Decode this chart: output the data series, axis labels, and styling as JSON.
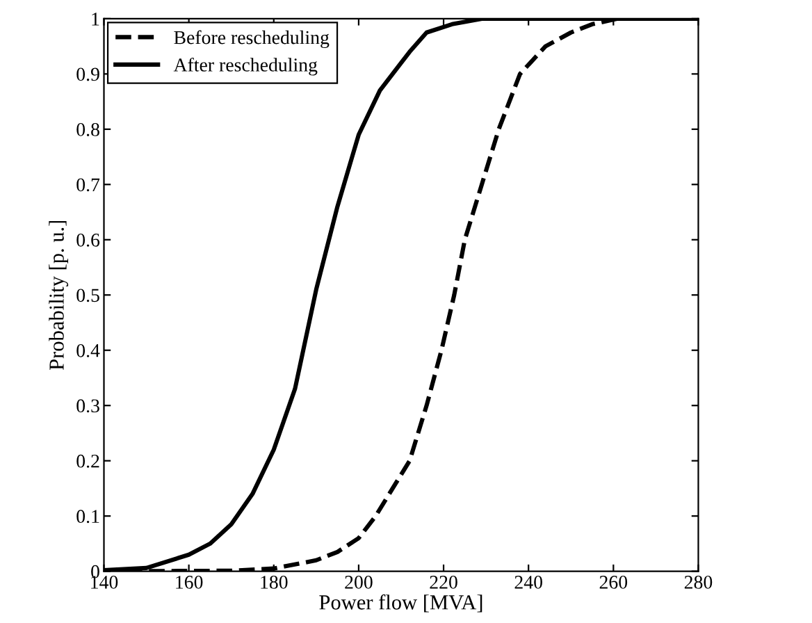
{
  "chart_data": {
    "type": "line",
    "xlabel": "Power flow [MVA]",
    "ylabel": "Probability [p. u.]",
    "xlim": [
      140,
      280
    ],
    "ylim": [
      0,
      1
    ],
    "xticks": [
      140,
      160,
      180,
      200,
      220,
      240,
      260,
      280
    ],
    "yticks": [
      0,
      0.1,
      0.2,
      0.3,
      0.4,
      0.5,
      0.6,
      0.7,
      0.8,
      0.9,
      1
    ],
    "legend": "top left",
    "grid": false,
    "series": [
      {
        "name": "Before rescheduling",
        "color": "#000000",
        "line_style": "dashed",
        "x": [
          140,
          170,
          180,
          190,
          195,
          200,
          204,
          208,
          212,
          216,
          219.5,
          222.5,
          225,
          229,
          233,
          238,
          244,
          250,
          255,
          261,
          280
        ],
        "values": [
          0,
          0.001,
          0.005,
          0.02,
          0.035,
          0.06,
          0.1,
          0.15,
          0.2,
          0.3,
          0.4,
          0.5,
          0.6,
          0.7,
          0.8,
          0.9,
          0.95,
          0.975,
          0.99,
          1,
          1
        ]
      },
      {
        "name": "After rescheduling",
        "color": "#000000",
        "line_style": "solid",
        "x": [
          140,
          150,
          160,
          165,
          170,
          175,
          180,
          185,
          190,
          195,
          200,
          205,
          210,
          212,
          216,
          222,
          229,
          240,
          280
        ],
        "values": [
          0.002,
          0.006,
          0.03,
          0.05,
          0.085,
          0.14,
          0.22,
          0.33,
          0.51,
          0.66,
          0.79,
          0.87,
          0.92,
          0.94,
          0.975,
          0.99,
          1,
          1,
          1
        ]
      }
    ]
  }
}
